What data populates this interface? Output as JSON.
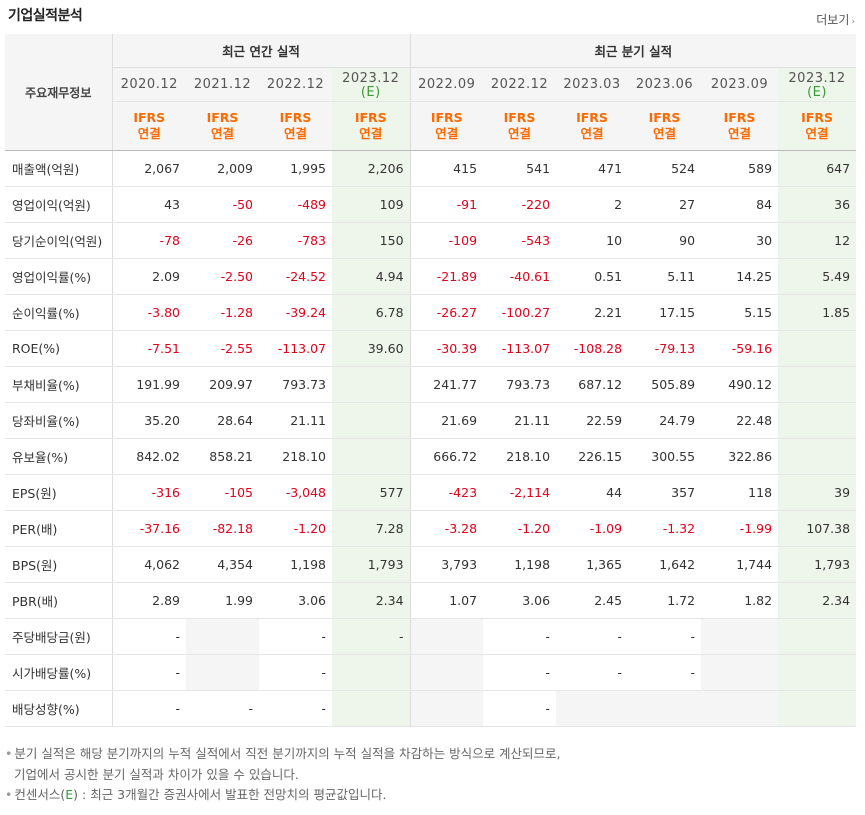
{
  "section": {
    "title": "기업실적분석",
    "more_label": "더보기",
    "more_arrow": "›"
  },
  "header": {
    "row_label": "주요재무정보",
    "annual_group": "최근 연간 실적",
    "quarter_group": "최근 분기 실적",
    "periods": [
      {
        "label": "2020.12",
        "est": false
      },
      {
        "label": "2021.12",
        "est": false
      },
      {
        "label": "2022.12",
        "est": false
      },
      {
        "label": "2023.12",
        "est": true,
        "est_mark": "(E)"
      },
      {
        "label": "2022.09",
        "est": false
      },
      {
        "label": "2022.12",
        "est": false
      },
      {
        "label": "2023.03",
        "est": false
      },
      {
        "label": "2023.06",
        "est": false
      },
      {
        "label": "2023.09",
        "est": false
      },
      {
        "label": "2023.12",
        "est": true,
        "est_mark": "(E)"
      }
    ],
    "ifrs": "IFRS",
    "consolidated": "연결"
  },
  "rows": [
    {
      "label": "매출액(억원)",
      "group_start": true,
      "values": [
        "2,067",
        "2,009",
        "1,995",
        "2,206",
        "415",
        "541",
        "471",
        "524",
        "589",
        "647"
      ]
    },
    {
      "label": "영업이익(억원)",
      "values": [
        "43",
        "-50",
        "-489",
        "109",
        "-91",
        "-220",
        "2",
        "27",
        "84",
        "36"
      ]
    },
    {
      "label": "당기순이익(억원)",
      "values": [
        "-78",
        "-26",
        "-783",
        "150",
        "-109",
        "-543",
        "10",
        "90",
        "30",
        "12"
      ]
    },
    {
      "label": "영업이익률(%)",
      "group_start": true,
      "values": [
        "2.09",
        "-2.50",
        "-24.52",
        "4.94",
        "-21.89",
        "-40.61",
        "0.51",
        "5.11",
        "14.25",
        "5.49"
      ]
    },
    {
      "label": "순이익률(%)",
      "values": [
        "-3.80",
        "-1.28",
        "-39.24",
        "6.78",
        "-26.27",
        "-100.27",
        "2.21",
        "17.15",
        "5.15",
        "1.85"
      ]
    },
    {
      "label": "ROE(%)",
      "values": [
        "-7.51",
        "-2.55",
        "-113.07",
        "39.60",
        "-30.39",
        "-113.07",
        "-108.28",
        "-79.13",
        "-59.16",
        ""
      ]
    },
    {
      "label": "부채비율(%)",
      "group_start": true,
      "values": [
        "191.99",
        "209.97",
        "793.73",
        "",
        "241.77",
        "793.73",
        "687.12",
        "505.89",
        "490.12",
        ""
      ]
    },
    {
      "label": "당좌비율(%)",
      "values": [
        "35.20",
        "28.64",
        "21.11",
        "",
        "21.69",
        "21.11",
        "22.59",
        "24.79",
        "22.48",
        ""
      ]
    },
    {
      "label": "유보율(%)",
      "values": [
        "842.02",
        "858.21",
        "218.10",
        "",
        "666.72",
        "218.10",
        "226.15",
        "300.55",
        "322.86",
        ""
      ]
    },
    {
      "label": "EPS(원)",
      "group_start": true,
      "values": [
        "-316",
        "-105",
        "-3,048",
        "577",
        "-423",
        "-2,114",
        "44",
        "357",
        "118",
        "39"
      ]
    },
    {
      "label": "PER(배)",
      "values": [
        "-37.16",
        "-82.18",
        "-1.20",
        "7.28",
        "-3.28",
        "-1.20",
        "-1.09",
        "-1.32",
        "-1.99",
        "107.38"
      ]
    },
    {
      "label": "BPS(원)",
      "values": [
        "4,062",
        "4,354",
        "1,198",
        "1,793",
        "3,793",
        "1,198",
        "1,365",
        "1,642",
        "1,744",
        "1,793"
      ]
    },
    {
      "label": "PBR(배)",
      "values": [
        "2.89",
        "1.99",
        "3.06",
        "2.34",
        "1.07",
        "3.06",
        "2.45",
        "1.72",
        "1.82",
        "2.34"
      ]
    },
    {
      "label": "주당배당금(원)",
      "group_start": true,
      "values": [
        "-",
        "",
        "-",
        "-",
        "",
        "-",
        "-",
        "-",
        "",
        ""
      ],
      "blank_cells": [
        1,
        4,
        8
      ]
    },
    {
      "label": "시가배당률(%)",
      "values": [
        "-",
        "",
        "-",
        "",
        "",
        "-",
        "-",
        "-",
        "",
        ""
      ],
      "blank_cells": [
        1,
        4,
        8
      ]
    },
    {
      "label": "배당성향(%)",
      "values": [
        "-",
        "-",
        "-",
        "",
        "",
        "-",
        "",
        "",
        "",
        ""
      ],
      "blank_cells": [
        4,
        6,
        7,
        8
      ]
    }
  ],
  "notes": {
    "bullet": "•",
    "line1": "분기 실적은 해당 분기까지의 누적 실적에서 직전 분기까지의 누적 실적을 차감하는 방식으로 계산되므로,",
    "line2": "기업에서 공시한 분기 실적과 차이가 있을 수 있습니다.",
    "line3_a": "컨센서스(",
    "line3_e": "E",
    "line3_b": ") : 최근 3개월간 증권사에서 발표한 전망치의 평균값입니다."
  },
  "colors": {
    "negative": "#e3001b",
    "ifrs": "#ff6a00",
    "estimate_bg": "#eef5ea",
    "estimate_text": "#3a9a3a"
  }
}
